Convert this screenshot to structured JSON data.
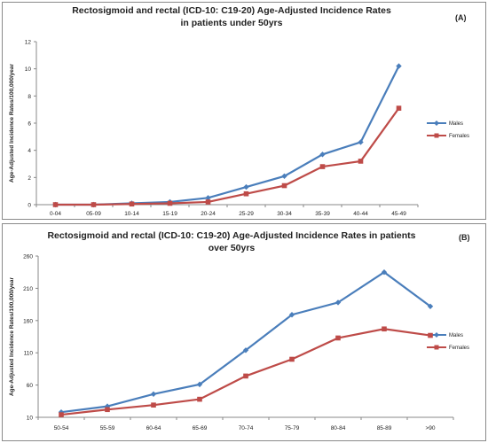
{
  "chart_data": [
    {
      "type": "line",
      "panel_tag": "(A)",
      "title_lines": [
        "Rectosigmoid and rectal (ICD-10: C19-20) Age-Adjusted Incidence Rates",
        "in patients under 50yrs"
      ],
      "xlabel": "",
      "ylabel": "Age-Adjusted Incidence Rates/100,000/year",
      "categories": [
        "0-04",
        "05-09",
        "10-14",
        "15-19",
        "20-24",
        "25-29",
        "30-34",
        "35-39",
        "40-44",
        "45-49"
      ],
      "ylim": [
        0,
        12
      ],
      "yticks": [
        0,
        2,
        4,
        6,
        8,
        10,
        12
      ],
      "grid": false,
      "legend_position": "right",
      "series": [
        {
          "name": "Males",
          "color": "#4a7ebb",
          "marker": "diamond",
          "values": [
            0,
            0,
            0.1,
            0.2,
            0.5,
            1.3,
            2.1,
            3.7,
            4.6,
            10.2
          ]
        },
        {
          "name": "Females",
          "color": "#be4b48",
          "marker": "square",
          "values": [
            0,
            0,
            0.05,
            0.1,
            0.2,
            0.8,
            1.4,
            2.8,
            3.2,
            7.1
          ]
        }
      ]
    },
    {
      "type": "line",
      "panel_tag": "(B)",
      "title_lines": [
        "Rectosigmoid and rectal (ICD-10: C19-20) Age-Adjusted Incidence Rates in patients",
        "over 50yrs"
      ],
      "xlabel": "",
      "ylabel": "Age-Adjusted Incidence Rates/100,000/year",
      "categories": [
        "50-54",
        "55-59",
        "60-64",
        "65-69",
        "70-74",
        "75-79",
        "80-84",
        "85-89",
        ">90"
      ],
      "ylim": [
        10,
        260
      ],
      "yticks": [
        10,
        60,
        110,
        160,
        210,
        260
      ],
      "grid": false,
      "legend_position": "right",
      "series": [
        {
          "name": "Males",
          "color": "#4a7ebb",
          "marker": "diamond",
          "values": [
            18,
            27,
            46,
            61,
            114,
            169,
            188,
            235,
            182
          ]
        },
        {
          "name": "Females",
          "color": "#be4b48",
          "marker": "square",
          "values": [
            14,
            22,
            29,
            38,
            74,
            100,
            133,
            147,
            137
          ]
        }
      ]
    }
  ]
}
